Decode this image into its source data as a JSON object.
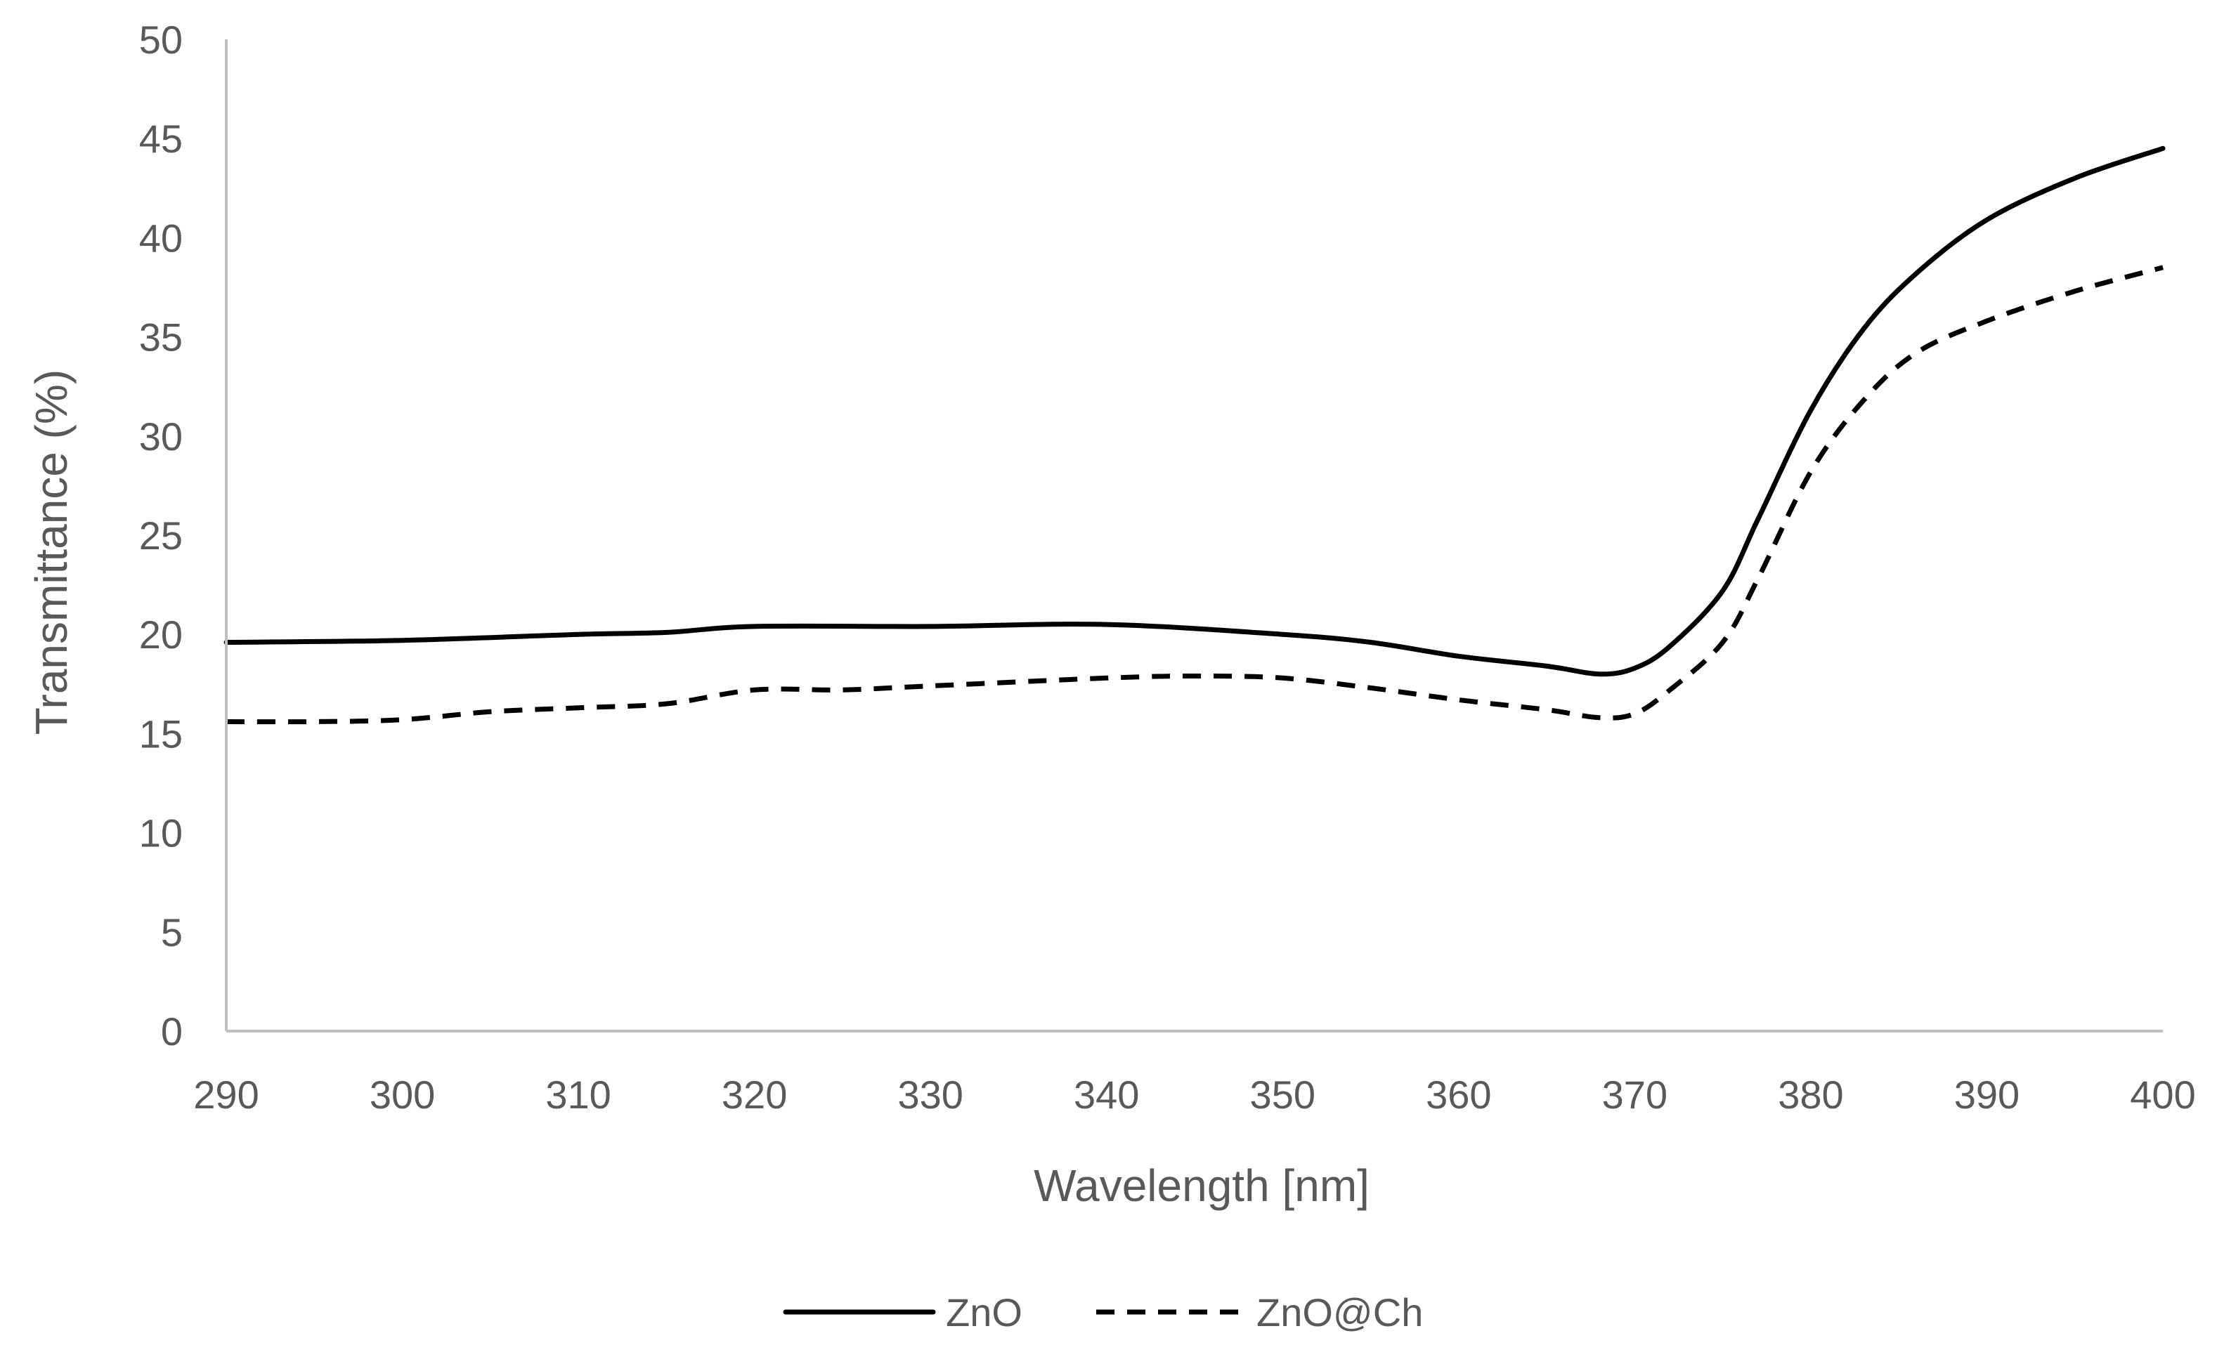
{
  "chart_data": {
    "type": "line",
    "title": "",
    "xlabel": "Wavelength [nm]",
    "ylabel": "Transmittance (%)",
    "xlim": [
      290,
      400
    ],
    "ylim": [
      0,
      50
    ],
    "x_ticks": [
      "290",
      "300",
      "310",
      "320",
      "330",
      "340",
      "350",
      "360",
      "370",
      "380",
      "390",
      "400"
    ],
    "y_ticks": [
      "0",
      "5",
      "10",
      "15",
      "20",
      "25",
      "30",
      "35",
      "40",
      "45",
      "50"
    ],
    "grid": false,
    "legend_position": "bottom-center",
    "series": [
      {
        "name": "ZnO",
        "style": "solid",
        "color": "#000000",
        "x": [
          290,
          300,
          310,
          315,
          320,
          330,
          340,
          350,
          355,
          360,
          365,
          368,
          370,
          372,
          375,
          377,
          380,
          383,
          386,
          390,
          395,
          400
        ],
        "y": [
          19.6,
          19.7,
          20.0,
          20.1,
          20.4,
          20.4,
          20.5,
          20.0,
          19.6,
          18.9,
          18.4,
          18.0,
          18.3,
          19.4,
          22.2,
          25.8,
          31.3,
          35.4,
          38.2,
          40.9,
          43.0,
          44.5
        ]
      },
      {
        "name": "ZnO@Ch",
        "style": "dashed",
        "color": "#000000",
        "x": [
          290,
          295,
          300,
          305,
          310,
          315,
          320,
          325,
          330,
          340,
          345,
          350,
          355,
          360,
          365,
          368,
          370,
          372,
          375,
          377,
          380,
          383,
          386,
          390,
          395,
          400
        ],
        "y": [
          15.6,
          15.6,
          15.7,
          16.1,
          16.3,
          16.5,
          17.2,
          17.2,
          17.4,
          17.8,
          17.9,
          17.8,
          17.3,
          16.7,
          16.2,
          15.8,
          16.0,
          17.2,
          19.6,
          22.8,
          28.2,
          31.8,
          34.2,
          35.8,
          37.3,
          38.5
        ]
      }
    ]
  }
}
